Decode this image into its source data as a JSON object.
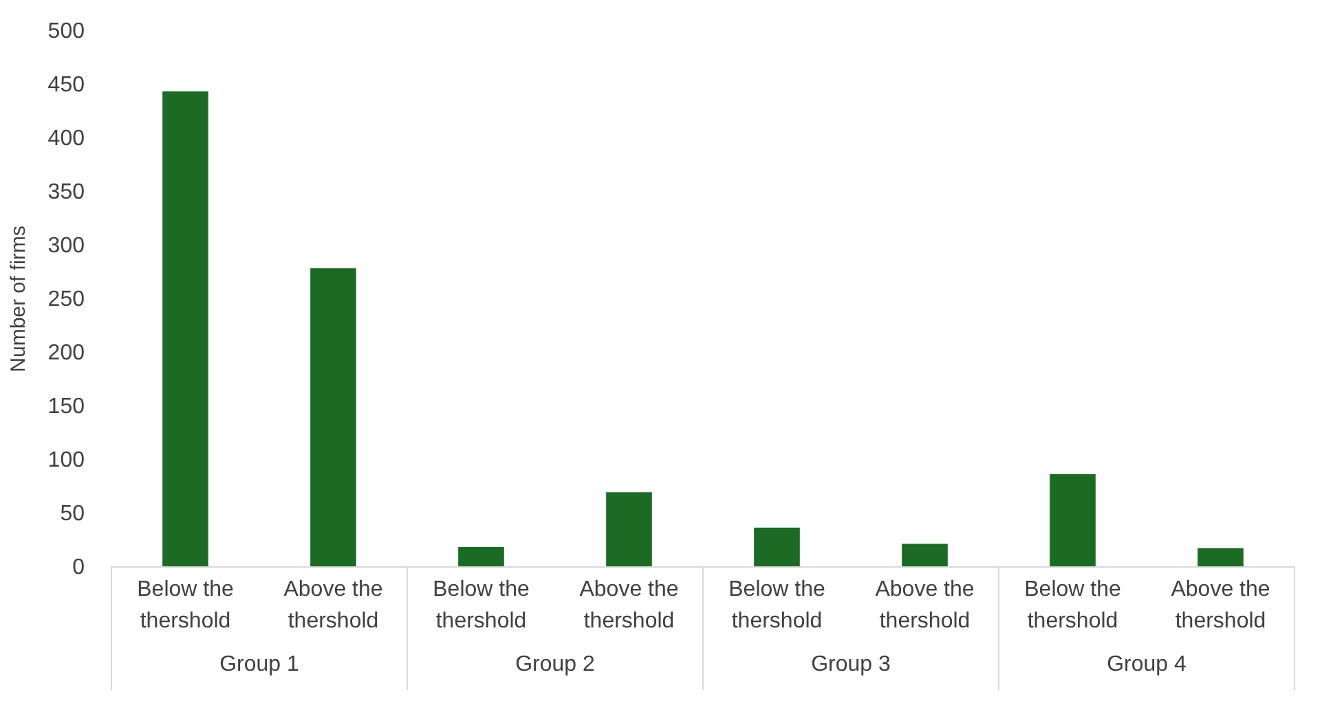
{
  "chart_data": {
    "type": "bar",
    "ylabel": "Number of firms",
    "categories": [
      "Below the thershold",
      "Above the thershold",
      "Below the thershold",
      "Above the thershold",
      "Below the thershold",
      "Above the thershold",
      "Below the thershold",
      "Above the thershold"
    ],
    "values": [
      443,
      278,
      18,
      69,
      36,
      21,
      86,
      17
    ],
    "color": "#1b6b25",
    "ylim": [
      0,
      500
    ],
    "yticks": [
      0,
      50,
      100,
      150,
      200,
      250,
      300,
      350,
      400,
      450,
      500
    ],
    "annotations": [
      "Group 1",
      "Group 2",
      "Group 3",
      "Group 4"
    ],
    "grid": false
  }
}
